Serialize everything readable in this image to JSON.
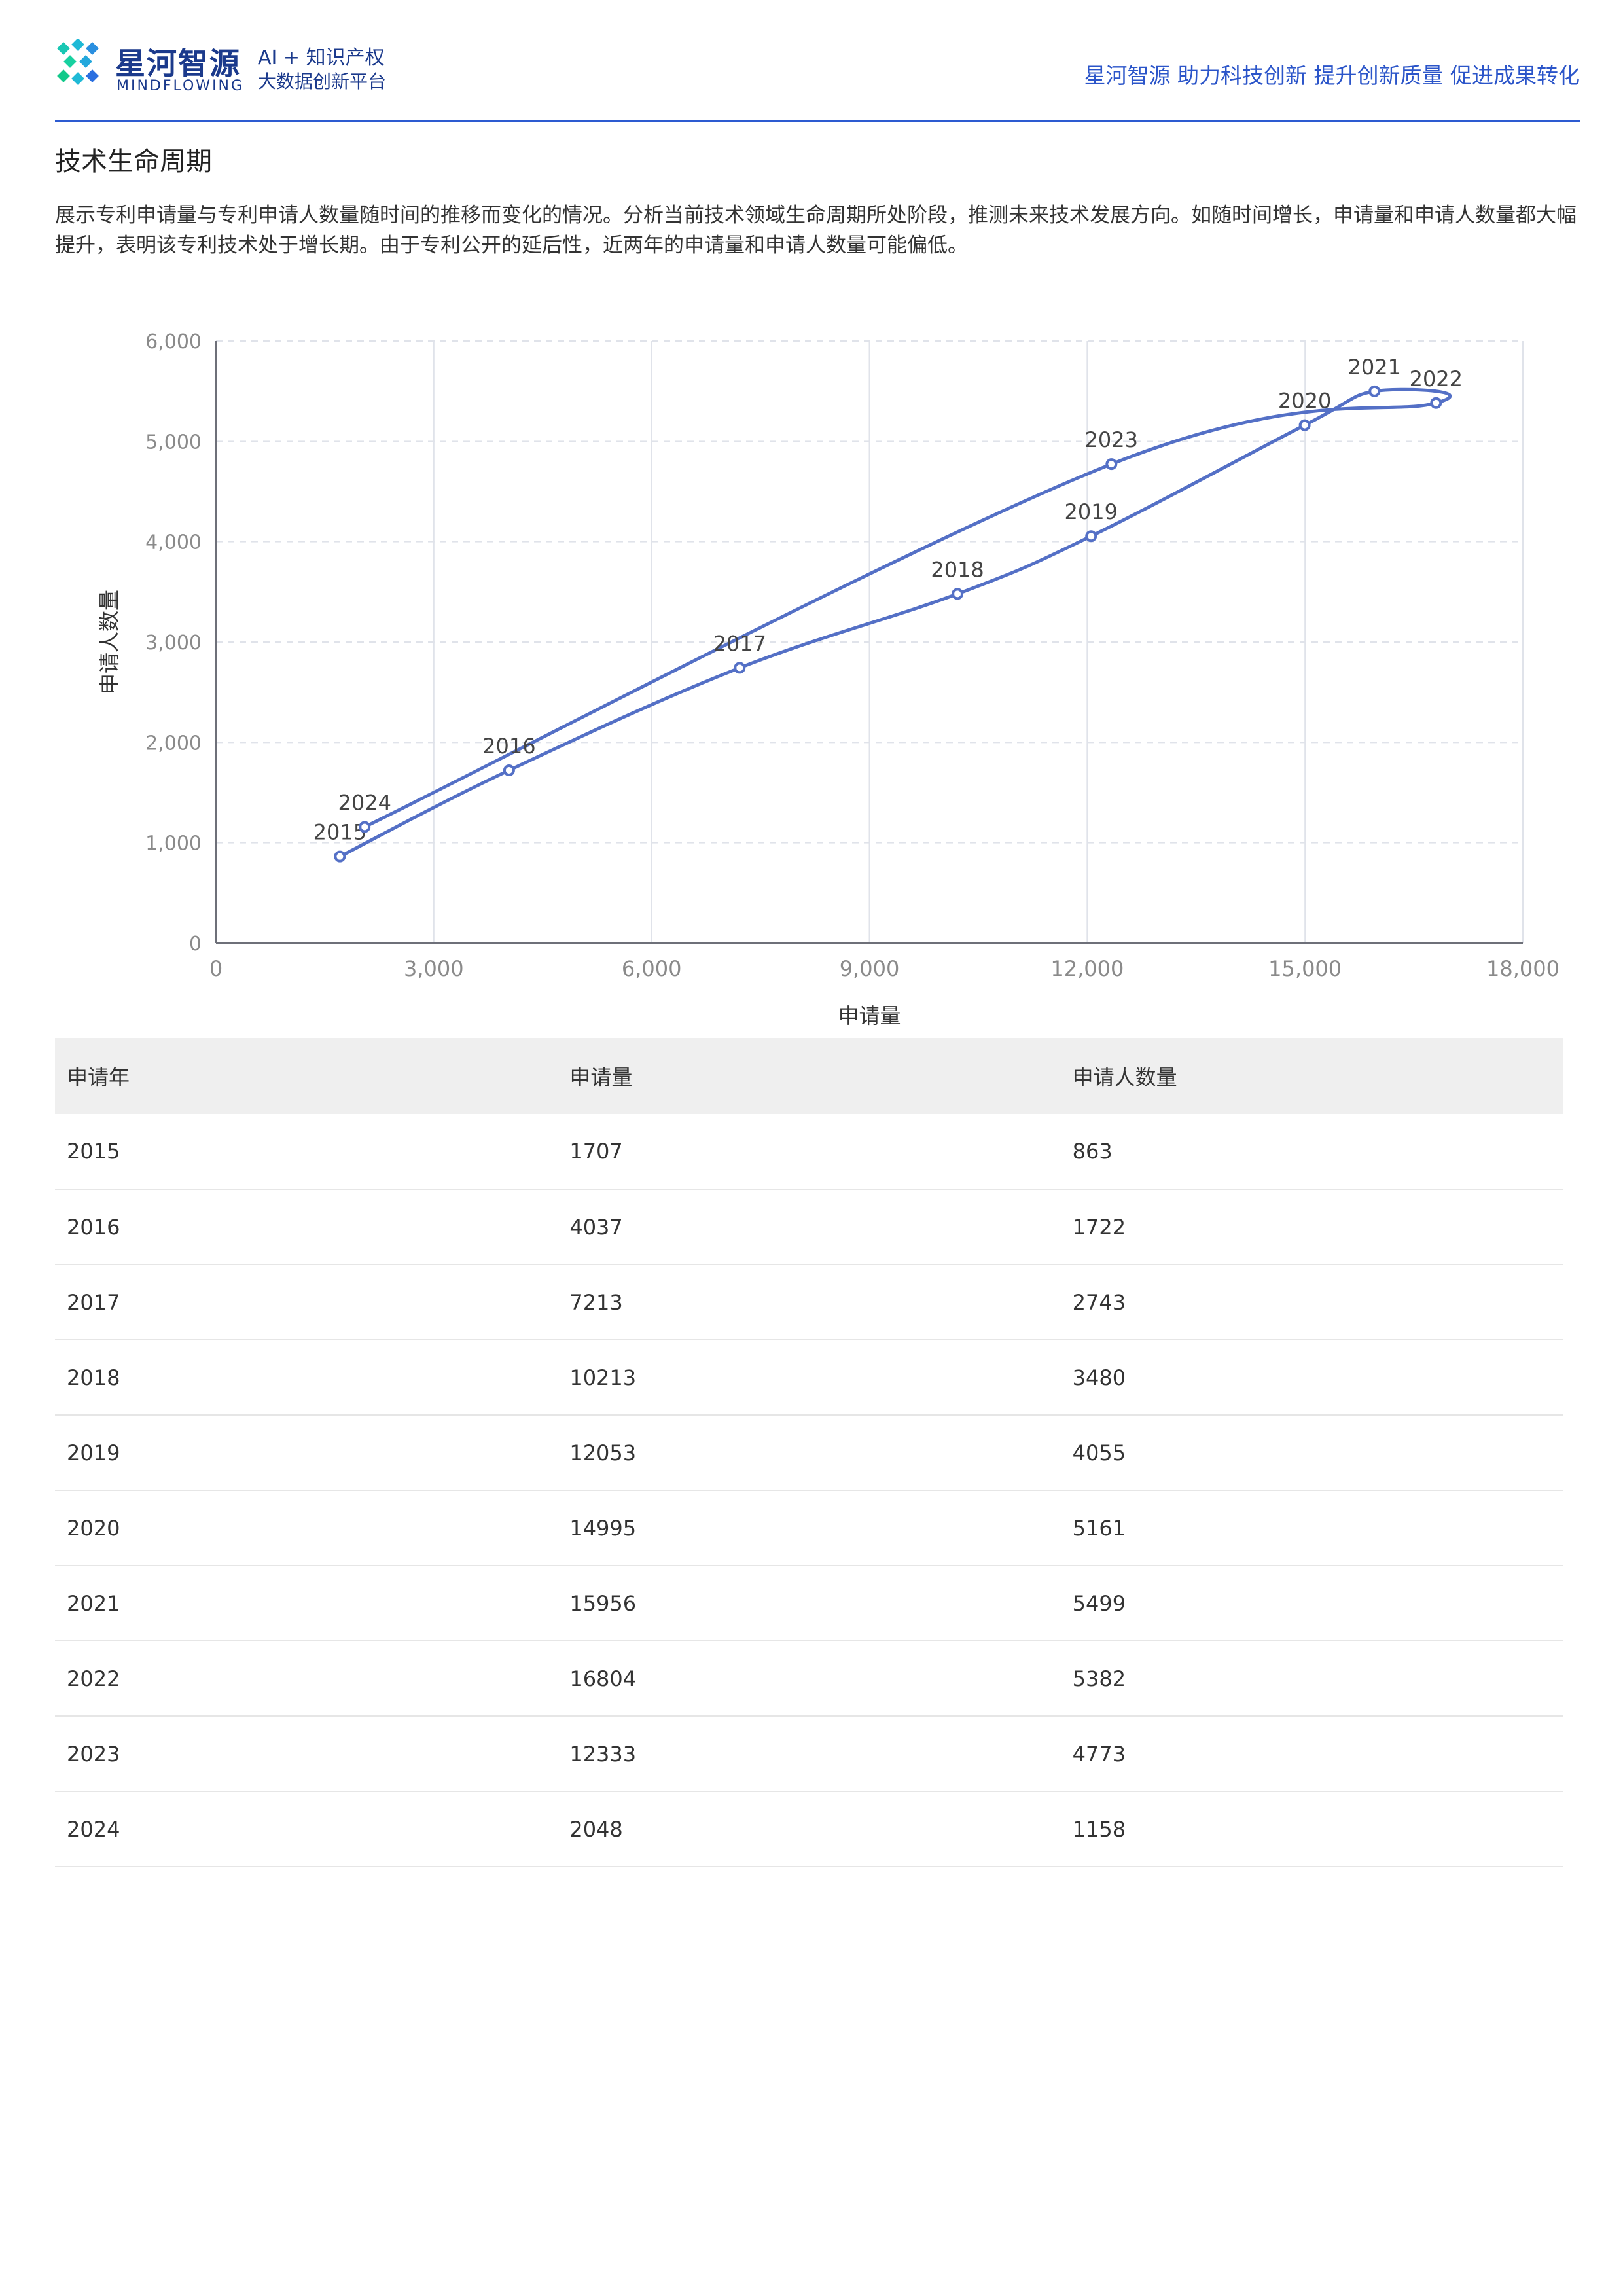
{
  "header": {
    "brand_cn": "星河智源",
    "brand_en": "MINDFLOWING",
    "tag_line1": "AI + 知识产权",
    "tag_line2": "大数据创新平台",
    "slogan": "星河智源 助力科技创新 提升创新质量 促进成果转化",
    "logo_icon": "mindflowing-logo-icon"
  },
  "section": {
    "title": "技术生命周期",
    "description": "展示专利申请量与专利申请人数量随时间的推移而变化的情况。分析当前技术领域生命周期所处阶段，推测未来技术发展方向。如随时间增长，申请量和申请人数量都大幅提升，表明该专利技术处于增长期。由于专利公开的延后性，近两年的申请量和申请人数量可能偏低。"
  },
  "colors": {
    "accent": "#2d5bd1",
    "line": "#5470c6",
    "grid": "#e0e3ea"
  },
  "chart_data": {
    "type": "line",
    "xlabel": "申请量",
    "ylabel": "申请人数量",
    "xlim": [
      0,
      18000
    ],
    "ylim": [
      0,
      6000
    ],
    "x_ticks": [
      "0",
      "3,000",
      "6,000",
      "9,000",
      "12,000",
      "15,000",
      "18,000"
    ],
    "y_ticks": [
      "0",
      "1,000",
      "2,000",
      "3,000",
      "4,000",
      "5,000",
      "6,000"
    ],
    "grid": true,
    "points": [
      {
        "label": "2015",
        "x": 1707,
        "y": 863
      },
      {
        "label": "2016",
        "x": 4037,
        "y": 1722
      },
      {
        "label": "2017",
        "x": 7213,
        "y": 2743
      },
      {
        "label": "2018",
        "x": 10213,
        "y": 3480
      },
      {
        "label": "2019",
        "x": 12053,
        "y": 4055
      },
      {
        "label": "2020",
        "x": 14995,
        "y": 5161
      },
      {
        "label": "2021",
        "x": 15956,
        "y": 5499
      },
      {
        "label": "2022",
        "x": 16804,
        "y": 5382
      },
      {
        "label": "2023",
        "x": 12333,
        "y": 4773
      },
      {
        "label": "2024",
        "x": 2048,
        "y": 1158
      }
    ]
  },
  "table": {
    "headers": [
      "申请年",
      "申请量",
      "申请人数量"
    ],
    "rows": [
      [
        "2015",
        "1707",
        "863"
      ],
      [
        "2016",
        "4037",
        "1722"
      ],
      [
        "2017",
        "7213",
        "2743"
      ],
      [
        "2018",
        "10213",
        "3480"
      ],
      [
        "2019",
        "12053",
        "4055"
      ],
      [
        "2020",
        "14995",
        "5161"
      ],
      [
        "2021",
        "15956",
        "5499"
      ],
      [
        "2022",
        "16804",
        "5382"
      ],
      [
        "2023",
        "12333",
        "4773"
      ],
      [
        "2024",
        "2048",
        "1158"
      ]
    ]
  }
}
